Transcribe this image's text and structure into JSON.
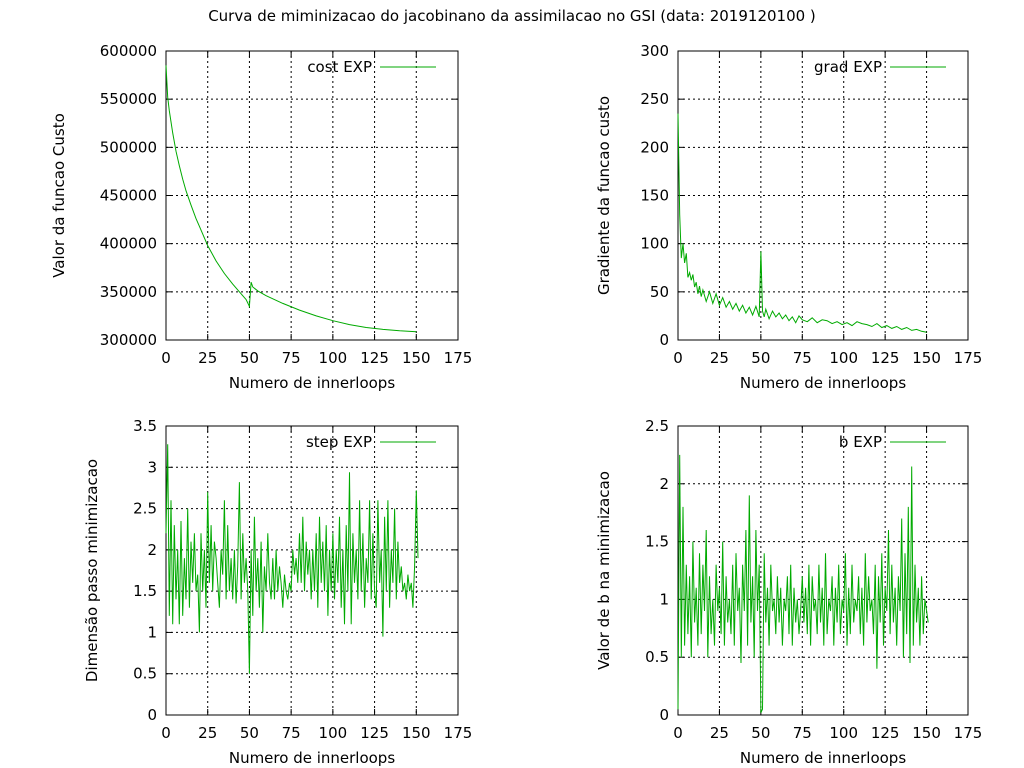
{
  "chart_data": {
    "title": "Curva de miminizacao do jacobinano da assimilacao no GSI (data: 2019120100 )",
    "line_color": "#00aa00",
    "panels": [
      {
        "id": "cost",
        "type": "line",
        "legend": "cost EXP",
        "legend_position": "top-right",
        "xlabel": "Numero de innerloops",
        "ylabel": "Valor da funcao Custo",
        "xlim": [
          0,
          175
        ],
        "ylim": [
          300000,
          600000
        ],
        "xticks": [
          0,
          25,
          50,
          75,
          100,
          125,
          150,
          175
        ],
        "xtick_labels": [
          "0",
          "25",
          "50",
          "75",
          "100",
          "125",
          "150",
          "175"
        ],
        "yticks": [
          300000,
          350000,
          400000,
          450000,
          500000,
          550000,
          600000
        ],
        "ytick_labels": [
          "300000",
          "350000",
          "400000",
          "450000",
          "500000",
          "550000",
          "600000"
        ],
        "grid": true,
        "x": [
          0,
          1,
          2,
          4,
          6,
          8,
          10,
          12,
          15,
          18,
          20,
          25,
          30,
          35,
          40,
          45,
          48,
          50,
          51,
          52,
          55,
          60,
          70,
          80,
          90,
          100,
          110,
          120,
          130,
          140,
          150
        ],
        "values": [
          585000,
          552000,
          538000,
          515000,
          496000,
          481000,
          467000,
          455000,
          440000,
          426000,
          418000,
          398000,
          382000,
          369000,
          358000,
          348000,
          342000,
          335000,
          360000,
          355000,
          351000,
          346000,
          338000,
          331000,
          325000,
          320000,
          316000,
          313000,
          311000,
          309500,
          308500
        ]
      },
      {
        "id": "grad",
        "type": "line",
        "legend": "grad EXP",
        "legend_position": "top-right",
        "xlabel": "Numero de innerloops",
        "ylabel": "Gradiente da funcao custo",
        "xlim": [
          0,
          175
        ],
        "ylim": [
          0,
          300
        ],
        "xticks": [
          0,
          25,
          50,
          75,
          100,
          125,
          150,
          175
        ],
        "xtick_labels": [
          "0",
          "25",
          "50",
          "75",
          "100",
          "125",
          "150",
          "175"
        ],
        "yticks": [
          0,
          50,
          100,
          150,
          200,
          250,
          300
        ],
        "ytick_labels": [
          "0",
          "50",
          "100",
          "150",
          "200",
          "250",
          "300"
        ],
        "grid": true,
        "x": [
          0,
          1,
          2,
          3,
          4,
          5,
          6,
          7,
          8,
          9,
          10,
          11,
          12,
          13,
          14,
          15,
          17,
          19,
          21,
          23,
          25,
          27,
          29,
          31,
          33,
          35,
          37,
          39,
          41,
          43,
          45,
          47,
          49,
          50,
          51,
          52,
          53,
          55,
          57,
          59,
          61,
          63,
          65,
          67,
          69,
          71,
          73,
          75,
          78,
          81,
          84,
          87,
          90,
          93,
          96,
          99,
          102,
          105,
          108,
          111,
          114,
          117,
          120,
          123,
          126,
          129,
          132,
          135,
          138,
          141,
          144,
          147,
          150
        ],
        "values": [
          235,
          130,
          85,
          100,
          80,
          90,
          65,
          70,
          62,
          68,
          55,
          60,
          48,
          56,
          45,
          52,
          40,
          50,
          38,
          48,
          36,
          44,
          34,
          40,
          32,
          38,
          30,
          36,
          28,
          34,
          26,
          35,
          24,
          92,
          30,
          24,
          32,
          22,
          30,
          24,
          28,
          22,
          26,
          20,
          24,
          18,
          25,
          21,
          19,
          23,
          18,
          21,
          20,
          17,
          19,
          16,
          18,
          15,
          19,
          17,
          16,
          14,
          17,
          13,
          15,
          12,
          14,
          11,
          13,
          10,
          11,
          9,
          8
        ]
      },
      {
        "id": "step",
        "type": "line",
        "legend": "step EXP",
        "legend_position": "top-right",
        "xlabel": "Numero de innerloops",
        "ylabel": "Dimensão passo minimizacao",
        "xlim": [
          0,
          175
        ],
        "ylim": [
          0,
          3.5
        ],
        "xticks": [
          0,
          25,
          50,
          75,
          100,
          125,
          150,
          175
        ],
        "xtick_labels": [
          "0",
          "25",
          "50",
          "75",
          "100",
          "125",
          "150",
          "175"
        ],
        "yticks": [
          0,
          0.5,
          1,
          1.5,
          2,
          2.5,
          3,
          3.5
        ],
        "ytick_labels": [
          "0",
          "0.5",
          "1",
          "1.5",
          "2",
          "2.5",
          "3",
          "3.5"
        ],
        "grid": true,
        "x": [
          0,
          1,
          2,
          3,
          4,
          5,
          6,
          7,
          8,
          9,
          10,
          11,
          12,
          13,
          14,
          15,
          16,
          17,
          18,
          19,
          20,
          21,
          22,
          23,
          24,
          25,
          26,
          27,
          28,
          29,
          30,
          31,
          32,
          33,
          34,
          35,
          36,
          37,
          38,
          39,
          40,
          41,
          42,
          43,
          44,
          45,
          46,
          47,
          48,
          49,
          50,
          51,
          52,
          53,
          54,
          55,
          56,
          57,
          58,
          59,
          60,
          61,
          62,
          63,
          64,
          65,
          66,
          67,
          68,
          69,
          70,
          71,
          72,
          73,
          74,
          75,
          76,
          77,
          78,
          79,
          80,
          81,
          82,
          83,
          84,
          85,
          86,
          87,
          88,
          89,
          90,
          91,
          92,
          93,
          94,
          95,
          96,
          97,
          98,
          99,
          100,
          101,
          102,
          103,
          104,
          105,
          106,
          107,
          108,
          109,
          110,
          111,
          112,
          113,
          114,
          115,
          116,
          117,
          118,
          119,
          120,
          121,
          122,
          123,
          124,
          125,
          126,
          127,
          128,
          129,
          130,
          131,
          132,
          133,
          134,
          135,
          136,
          137,
          138,
          139,
          140,
          141,
          142,
          143,
          144,
          145,
          146,
          147,
          148,
          149,
          150,
          151
        ],
        "values": [
          2.2,
          3.28,
          1.2,
          2.6,
          1.1,
          2.3,
          1.4,
          2.0,
          1.1,
          2.35,
          1.2,
          1.9,
          1.4,
          2.5,
          1.3,
          2.1,
          1.6,
          2.2,
          1.5,
          1.7,
          1.0,
          2.2,
          1.5,
          2.0,
          1.3,
          2.7,
          1.6,
          2.3,
          1.5,
          2.1,
          1.9,
          1.6,
          1.3,
          2.0,
          1.7,
          2.6,
          1.4,
          2.3,
          1.5,
          1.9,
          1.4,
          2.0,
          1.35,
          1.8,
          2.82,
          1.4,
          2.2,
          1.6,
          1.9,
          1.5,
          0.5,
          2.0,
          1.2,
          2.4,
          1.5,
          1.9,
          1.3,
          2.1,
          1.0,
          1.8,
          1.5,
          2.2,
          1.6,
          1.4,
          1.9,
          1.4,
          2.0,
          1.5,
          1.8,
          1.6,
          1.3,
          1.7,
          1.5,
          1.4,
          1.6,
          1.5,
          2.0,
          1.7,
          1.9,
          1.6,
          2.2,
          1.6,
          2.4,
          1.5,
          2.1,
          1.7,
          2.0,
          1.4,
          2.0,
          1.5,
          2.2,
          1.3,
          2.4,
          1.6,
          2.1,
          1.5,
          2.3,
          1.2,
          2.0,
          1.5,
          2.2,
          1.4,
          2.0,
          1.6,
          2.4,
          1.3,
          2.0,
          1.1,
          2.3,
          1.5,
          2.94,
          1.1,
          2.2,
          1.6,
          2.0,
          1.4,
          2.6,
          1.5,
          2.2,
          1.3,
          1.9,
          1.6,
          2.6,
          1.4,
          2.2,
          1.5,
          1.3,
          2.6,
          1.6,
          2.0,
          0.95,
          2.4,
          1.5,
          2.6,
          1.3,
          2.0,
          1.6,
          2.5,
          1.4,
          2.1,
          1.6,
          1.8,
          1.5,
          1.6,
          1.4,
          1.7,
          1.5,
          1.6,
          1.3,
          1.8,
          2.72,
          1.9
        ]
      },
      {
        "id": "b",
        "type": "line",
        "legend": "b EXP",
        "legend_position": "top-right",
        "xlabel": "Numero de innerloops",
        "ylabel": "Valor de b na minimizacao",
        "xlim": [
          0,
          175
        ],
        "ylim": [
          0,
          2.5
        ],
        "xticks": [
          0,
          25,
          50,
          75,
          100,
          125,
          150,
          175
        ],
        "xtick_labels": [
          "0",
          "25",
          "50",
          "75",
          "100",
          "125",
          "150",
          "175"
        ],
        "yticks": [
          0,
          0.5,
          1,
          1.5,
          2,
          2.5
        ],
        "ytick_labels": [
          "0",
          "0.5",
          "1",
          "1.5",
          "2",
          "2.5"
        ],
        "grid": true,
        "x": [
          0,
          1,
          2,
          3,
          4,
          5,
          6,
          7,
          8,
          9,
          10,
          11,
          12,
          13,
          14,
          15,
          16,
          17,
          18,
          19,
          20,
          21,
          22,
          23,
          24,
          25,
          26,
          27,
          28,
          29,
          30,
          31,
          32,
          33,
          34,
          35,
          36,
          37,
          38,
          39,
          40,
          41,
          42,
          43,
          44,
          45,
          46,
          47,
          48,
          49,
          50,
          51,
          52,
          53,
          54,
          55,
          56,
          57,
          58,
          59,
          60,
          61,
          62,
          63,
          64,
          65,
          66,
          67,
          68,
          69,
          70,
          71,
          72,
          73,
          74,
          75,
          76,
          77,
          78,
          79,
          80,
          81,
          82,
          83,
          84,
          85,
          86,
          87,
          88,
          89,
          90,
          91,
          92,
          93,
          94,
          95,
          96,
          97,
          98,
          99,
          100,
          101,
          102,
          103,
          104,
          105,
          106,
          107,
          108,
          109,
          110,
          111,
          112,
          113,
          114,
          115,
          116,
          117,
          118,
          119,
          120,
          121,
          122,
          123,
          124,
          125,
          126,
          127,
          128,
          129,
          130,
          131,
          132,
          133,
          134,
          135,
          136,
          137,
          138,
          139,
          140,
          141,
          142,
          143,
          144,
          145,
          146,
          147,
          148,
          149,
          150,
          151
        ],
        "values": [
          0.05,
          2.25,
          0.5,
          1.8,
          0.6,
          1.3,
          0.7,
          1.2,
          0.5,
          1.5,
          0.8,
          1.1,
          0.6,
          1.4,
          0.7,
          1.3,
          0.9,
          1.6,
          0.5,
          1.2,
          0.7,
          1.0,
          0.6,
          1.3,
          0.9,
          1.1,
          0.7,
          1.5,
          0.6,
          1.2,
          0.8,
          1.0,
          0.7,
          1.3,
          0.6,
          1.4,
          0.9,
          1.1,
          0.45,
          1.3,
          0.9,
          1.6,
          0.6,
          1.9,
          0.8,
          1.2,
          0.5,
          1.6,
          0.9,
          1.3,
          0.02,
          0.05,
          1.4,
          0.8,
          1.1,
          0.6,
          1.3,
          0.9,
          1.0,
          0.7,
          1.2,
          0.8,
          1.1,
          0.6,
          1.0,
          0.9,
          1.2,
          0.7,
          1.3,
          0.6,
          1.1,
          0.8,
          1.0,
          0.7,
          0.9,
          1.2,
          0.8,
          1.1,
          0.7,
          1.3,
          0.6,
          1.2,
          0.9,
          1.0,
          0.7,
          1.3,
          0.8,
          1.1,
          0.6,
          1.4,
          0.7,
          1.0,
          0.9,
          1.2,
          0.6,
          1.1,
          0.8,
          1.3,
          0.7,
          1.0,
          0.9,
          1.4,
          0.6,
          1.1,
          0.7,
          1.3,
          0.8,
          1.0,
          0.9,
          1.2,
          0.7,
          1.1,
          0.6,
          1.4,
          0.8,
          1.2,
          0.9,
          1.0,
          0.7,
          1.3,
          0.4,
          1.2,
          0.8,
          1.4,
          0.6,
          1.1,
          0.9,
          1.6,
          0.7,
          1.3,
          0.8,
          1.1,
          0.6,
          1.2,
          0.9,
          1.7,
          0.5,
          1.4,
          0.7,
          1.8,
          0.45,
          2.15,
          0.6,
          1.3,
          0.8,
          1.1,
          0.6,
          1.2,
          0.7,
          1.0,
          0.9,
          0.8
        ]
      }
    ]
  }
}
